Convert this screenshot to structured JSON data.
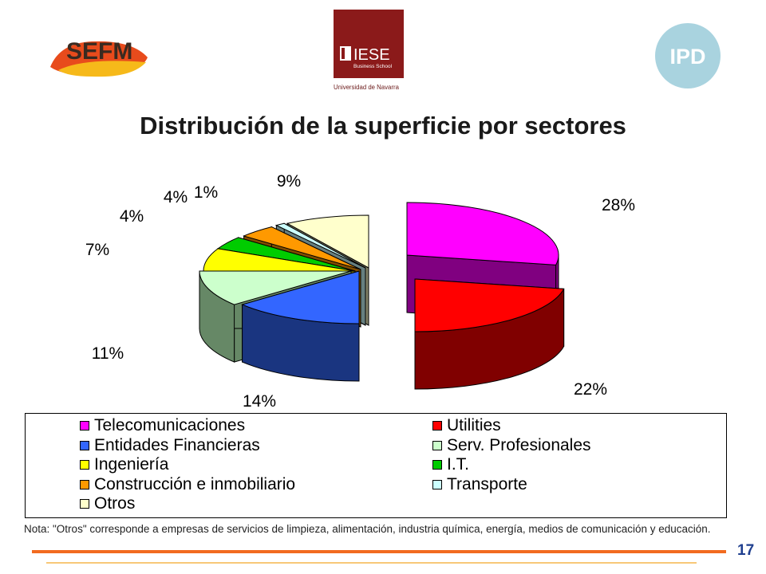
{
  "logos": {
    "sefm": "SEFM",
    "iese_main": "IESE",
    "iese_sub": "Business School",
    "iese_univ": "Universidad de Navarra",
    "ipd": "IPD"
  },
  "title": "Distribución de la superficie por sectores",
  "chart_data": {
    "type": "pie",
    "style": "exploded-3d",
    "slices": [
      {
        "name": "Telecomunicaciones",
        "value": 28,
        "label": "28%",
        "color": "#ff00ff",
        "side_color": "#800080"
      },
      {
        "name": "Utilities",
        "value": 22,
        "label": "22%",
        "color": "#ff0000",
        "side_color": "#800000"
      },
      {
        "name": "Entidades Financieras",
        "value": 14,
        "label": "14%",
        "color": "#3366ff",
        "side_color": "#1a3580"
      },
      {
        "name": "Serv. Profesionales",
        "value": 11,
        "label": "11%",
        "color": "#ccffcc",
        "side_color": "#668866"
      },
      {
        "name": "Ingeniería",
        "value": 7,
        "label": "7%",
        "color": "#ffff00",
        "side_color": "#808000"
      },
      {
        "name": "I.T.",
        "value": 4,
        "label": "4%",
        "color": "#00cc00",
        "side_color": "#006600"
      },
      {
        "name": "Construcción e inmobiliario",
        "value": 4,
        "label": "4%",
        "color": "#ff9900",
        "side_color": "#804c00"
      },
      {
        "name": "Transporte",
        "value": 1,
        "label": "1%",
        "color": "#ccffff",
        "side_color": "#667f7f"
      },
      {
        "name": "Otros",
        "value": 9,
        "label": "9%",
        "color": "#ffffcc",
        "side_color": "#808066"
      }
    ],
    "legend": [
      {
        "label": "Telecomunicaciones",
        "color": "#ff00ff"
      },
      {
        "label": "Utilities",
        "color": "#ff0000"
      },
      {
        "label": "Entidades Financieras",
        "color": "#3366ff"
      },
      {
        "label": "Serv. Profesionales",
        "color": "#ccffcc"
      },
      {
        "label": "Ingeniería",
        "color": "#ffff00"
      },
      {
        "label": "I.T.",
        "color": "#00cc00"
      },
      {
        "label": "Construcción e inmobiliario",
        "color": "#ff9900"
      },
      {
        "label": "Transporte",
        "color": "#ccffff"
      },
      {
        "label": "Otros",
        "color": "#ffffcc"
      }
    ],
    "legend_position": "bottom"
  },
  "note": "Nota: \"Otros\" corresponde a empresas de servicios de limpieza, alimentación, industria química, energía, medios de comunicación y educación.",
  "page_number": "17",
  "accent_colors": {
    "orange_bar": "#f26b1f",
    "yellow_bar": "#f8c878",
    "page_number": "#1f3f8f"
  }
}
